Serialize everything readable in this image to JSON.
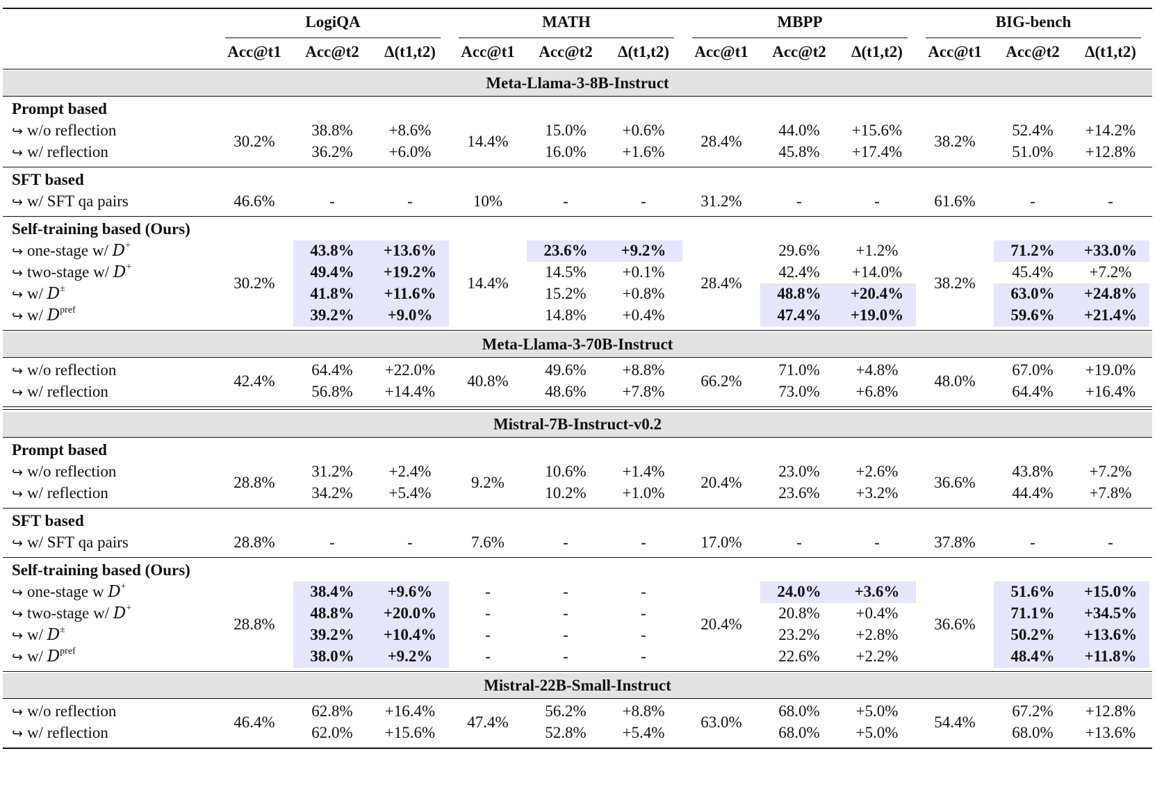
{
  "datasets": [
    {
      "name": "LogiQA",
      "cols": [
        "Acc@t1",
        "Acc@t2",
        "Δ(t1,t2)"
      ]
    },
    {
      "name": "MATH",
      "cols": [
        "Acc@t1",
        "Acc@t2",
        "Δ(t1,t2)"
      ]
    },
    {
      "name": "MBPP",
      "cols": [
        "Acc@t1",
        "Acc@t2",
        "Δ(t1,t2)"
      ]
    },
    {
      "name": "BIG-bench",
      "cols": [
        "Acc@t1",
        "Acc@t2",
        "Δ(t1,t2)"
      ]
    }
  ],
  "highlight_color": "#e5e5fb",
  "model_band_color": "#e2e2e2",
  "models": [
    {
      "name": "Meta-Llama-3-8B-Instruct",
      "groups": [
        {
          "title": "Prompt based",
          "t1": [
            "30.2%",
            "14.4%",
            "28.4%",
            "38.2%"
          ],
          "rows": [
            {
              "label": "w/o reflection",
              "cells": [
                [
                  "38.8%",
                  "+8.6%"
                ],
                [
                  "15.0%",
                  "+0.6%"
                ],
                [
                  "44.0%",
                  "+15.6%"
                ],
                [
                  "52.4%",
                  "+14.2%"
                ]
              ]
            },
            {
              "label": "w/ reflection",
              "cells": [
                [
                  "36.2%",
                  "+6.0%"
                ],
                [
                  "16.0%",
                  "+1.6%"
                ],
                [
                  "45.8%",
                  "+17.4%"
                ],
                [
                  "51.0%",
                  "+12.8%"
                ]
              ]
            }
          ]
        },
        {
          "title": "SFT based",
          "t1": [
            "46.6%",
            "10%",
            "31.2%",
            "61.6%"
          ],
          "rows": [
            {
              "label": "w/ SFT qa pairs",
              "cells": [
                [
                  "-",
                  "-"
                ],
                [
                  "-",
                  "-"
                ],
                [
                  "-",
                  "-"
                ],
                [
                  "-",
                  "-"
                ]
              ]
            }
          ]
        },
        {
          "title": "Self-training based (Ours)",
          "t1": [
            "30.2%",
            "14.4%",
            "28.4%",
            "38.2%"
          ],
          "rows": [
            {
              "label": "one-stage w/ ",
              "sym": "D",
              "sup": "+",
              "cells": [
                [
                  "43.8%",
                  "+13.6%"
                ],
                [
                  "23.6%",
                  "+9.2%"
                ],
                [
                  "29.6%",
                  "+1.2%"
                ],
                [
                  "71.2%",
                  "+33.0%"
                ]
              ],
              "hl": [
                true,
                true,
                false,
                true
              ]
            },
            {
              "label": "two-stage w/ ",
              "sym": "D",
              "sup": "+",
              "cells": [
                [
                  "49.4%",
                  "+19.2%"
                ],
                [
                  "14.5%",
                  "+0.1%"
                ],
                [
                  "42.4%",
                  "+14.0%"
                ],
                [
                  "45.4%",
                  "+7.2%"
                ]
              ],
              "hl": [
                true,
                false,
                false,
                false
              ]
            },
            {
              "label": "w/ ",
              "sym": "D",
              "sup": "±",
              "cells": [
                [
                  "41.8%",
                  "+11.6%"
                ],
                [
                  "15.2%",
                  "+0.8%"
                ],
                [
                  "48.8%",
                  "+20.4%"
                ],
                [
                  "63.0%",
                  "+24.8%"
                ]
              ],
              "hl": [
                true,
                false,
                true,
                true
              ]
            },
            {
              "label": "w/ ",
              "sym": "D",
              "sup": "pref",
              "cells": [
                [
                  "39.2%",
                  "+9.0%"
                ],
                [
                  "14.8%",
                  "+0.4%"
                ],
                [
                  "47.4%",
                  "+19.0%"
                ],
                [
                  "59.6%",
                  "+21.4%"
                ]
              ],
              "hl": [
                true,
                false,
                true,
                true
              ]
            }
          ]
        }
      ]
    },
    {
      "name": "Meta-Llama-3-70B-Instruct",
      "groups": [
        {
          "title": "",
          "t1": [
            "42.4%",
            "40.8%",
            "66.2%",
            "48.0%"
          ],
          "rows": [
            {
              "label": "w/o reflection",
              "cells": [
                [
                  "64.4%",
                  "+22.0%"
                ],
                [
                  "49.6%",
                  "+8.8%"
                ],
                [
                  "71.0%",
                  "+4.8%"
                ],
                [
                  "67.0%",
                  "+19.0%"
                ]
              ]
            },
            {
              "label": "w/ reflection",
              "cells": [
                [
                  "56.8%",
                  "+14.4%"
                ],
                [
                  "48.6%",
                  "+7.8%"
                ],
                [
                  "73.0%",
                  "+6.8%"
                ],
                [
                  "64.4%",
                  "+16.4%"
                ]
              ]
            }
          ]
        }
      ]
    },
    {
      "name": "Mistral-7B-Instruct-v0.2",
      "groups": [
        {
          "title": "Prompt based",
          "t1": [
            "28.8%",
            "9.2%",
            "20.4%",
            "36.6%"
          ],
          "rows": [
            {
              "label": "w/o reflection",
              "cells": [
                [
                  "31.2%",
                  "+2.4%"
                ],
                [
                  "10.6%",
                  "+1.4%"
                ],
                [
                  "23.0%",
                  "+2.6%"
                ],
                [
                  "43.8%",
                  "+7.2%"
                ]
              ]
            },
            {
              "label": "w/ reflection",
              "cells": [
                [
                  "34.2%",
                  "+5.4%"
                ],
                [
                  "10.2%",
                  "+1.0%"
                ],
                [
                  "23.6%",
                  "+3.2%"
                ],
                [
                  "44.4%",
                  "+7.8%"
                ]
              ]
            }
          ]
        },
        {
          "title": "SFT based",
          "t1": [
            "28.8%",
            "7.6%",
            "17.0%",
            "37.8%"
          ],
          "rows": [
            {
              "label": "w/ SFT qa pairs",
              "cells": [
                [
                  "-",
                  "-"
                ],
                [
                  "-",
                  "-"
                ],
                [
                  "-",
                  "-"
                ],
                [
                  "-",
                  "-"
                ]
              ]
            }
          ]
        },
        {
          "title": "Self-training based (Ours)",
          "t1": [
            "28.8%",
            "",
            "20.4%",
            "36.6%"
          ],
          "rows": [
            {
              "label": "one-stage w ",
              "sym": "D",
              "sup": "+",
              "cells": [
                [
                  "38.4%",
                  "+9.6%"
                ],
                [
                  "-",
                  "-"
                ],
                [
                  "24.0%",
                  "+3.6%"
                ],
                [
                  "51.6%",
                  "+15.0%"
                ]
              ],
              "hl": [
                true,
                false,
                true,
                true
              ],
              "t1": [
                "",
                "-",
                "",
                ""
              ]
            },
            {
              "label": "two-stage w/ ",
              "sym": "D",
              "sup": "+",
              "cells": [
                [
                  "48.8%",
                  "+20.0%"
                ],
                [
                  "-",
                  "-"
                ],
                [
                  "20.8%",
                  "+0.4%"
                ],
                [
                  "71.1%",
                  "+34.5%"
                ]
              ],
              "hl": [
                true,
                false,
                false,
                true
              ],
              "t1": [
                "",
                "-",
                "",
                ""
              ]
            },
            {
              "label": "w/ ",
              "sym": "D",
              "sup": "±",
              "cells": [
                [
                  "39.2%",
                  "+10.4%"
                ],
                [
                  "-",
                  "-"
                ],
                [
                  "23.2%",
                  "+2.8%"
                ],
                [
                  "50.2%",
                  "+13.6%"
                ]
              ],
              "hl": [
                true,
                false,
                false,
                true
              ],
              "t1": [
                "",
                "-",
                "",
                ""
              ]
            },
            {
              "label": "w/ ",
              "sym": "D",
              "sup": "pref",
              "cells": [
                [
                  "38.0%",
                  "+9.2%"
                ],
                [
                  "-",
                  "-"
                ],
                [
                  "22.6%",
                  "+2.2%"
                ],
                [
                  "48.4%",
                  "+11.8%"
                ]
              ],
              "hl": [
                true,
                false,
                false,
                true
              ],
              "t1": [
                "",
                "-",
                "",
                ""
              ]
            }
          ]
        }
      ]
    },
    {
      "name": "Mistral-22B-Small-Instruct",
      "groups": [
        {
          "title": "",
          "t1": [
            "46.4%",
            "47.4%",
            "63.0%",
            "54.4%"
          ],
          "rows": [
            {
              "label": "w/o reflection",
              "cells": [
                [
                  "62.8%",
                  "+16.4%"
                ],
                [
                  "56.2%",
                  "+8.8%"
                ],
                [
                  "68.0%",
                  "+5.0%"
                ],
                [
                  "67.2%",
                  "+12.8%"
                ]
              ]
            },
            {
              "label": "w/ reflection",
              "cells": [
                [
                  "62.0%",
                  "+15.6%"
                ],
                [
                  "52.8%",
                  "+5.4%"
                ],
                [
                  "68.0%",
                  "+5.0%"
                ],
                [
                  "68.0%",
                  "+13.6%"
                ]
              ]
            }
          ]
        }
      ]
    }
  ]
}
